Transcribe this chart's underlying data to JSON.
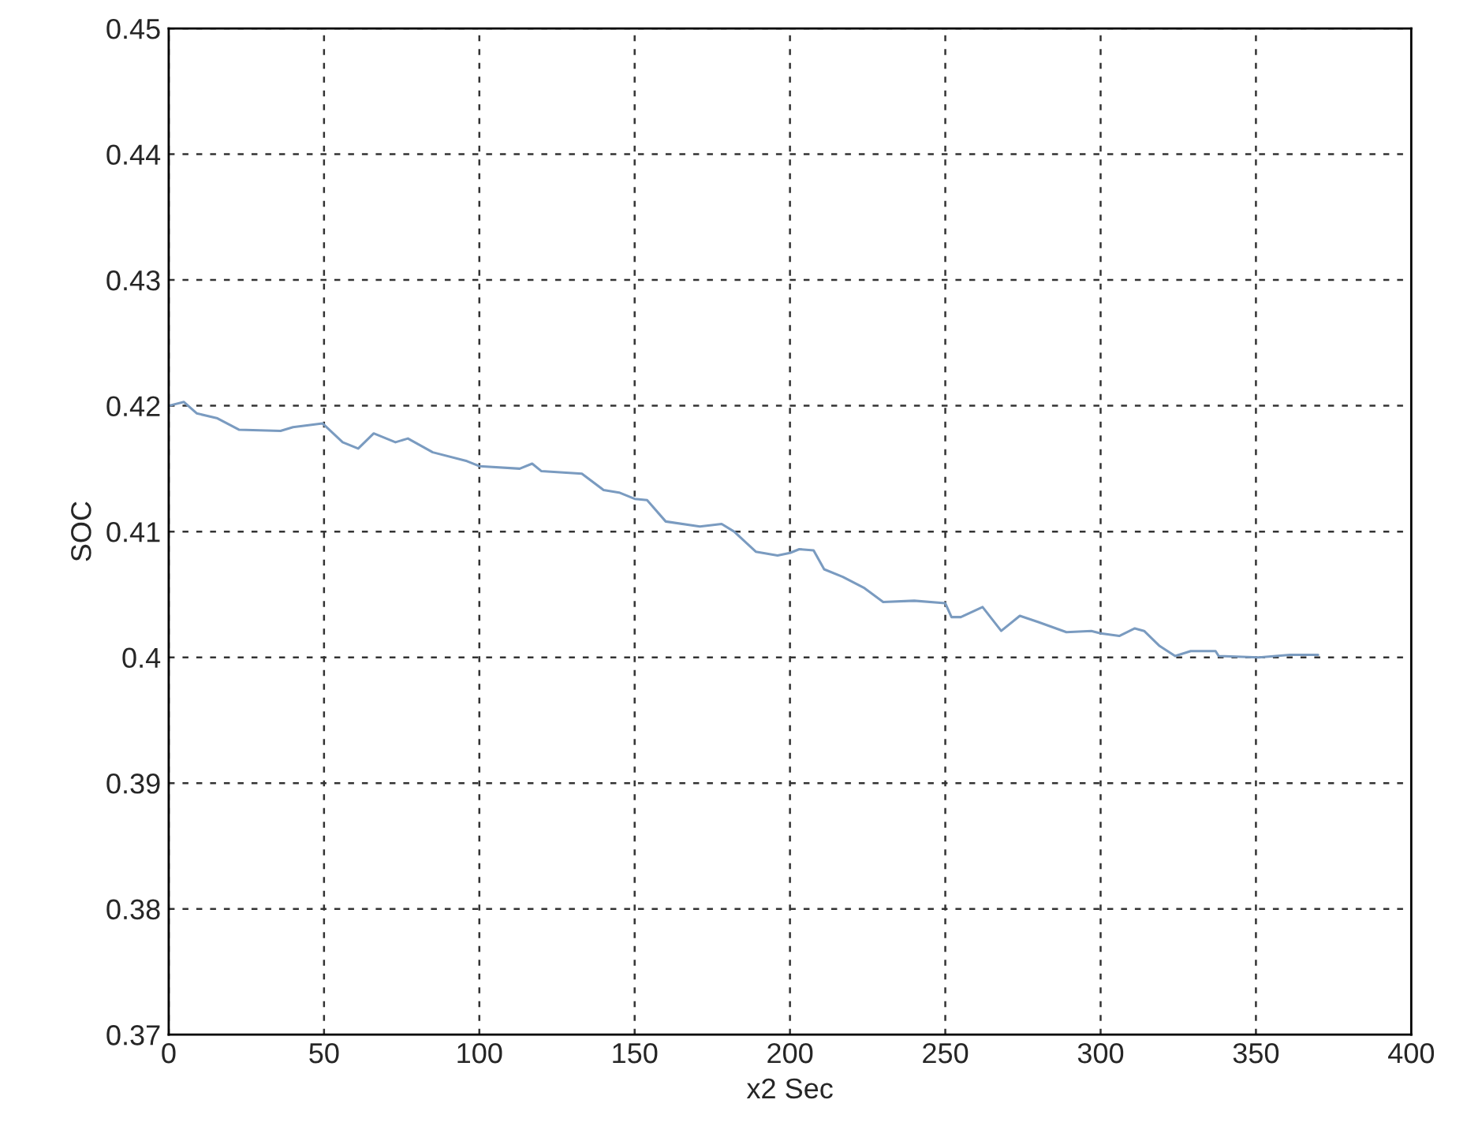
{
  "chart_data": {
    "type": "line",
    "xlabel": "x2 Sec",
    "ylabel": "SOC",
    "xlim": [
      0,
      400
    ],
    "xticks": [
      0,
      50,
      100,
      150,
      200,
      250,
      300,
      350,
      400
    ],
    "ylim": [
      0.37,
      0.45
    ],
    "yticks": [
      0.37,
      0.38,
      0.39,
      0.4,
      0.41,
      0.42,
      0.43,
      0.44,
      0.45
    ],
    "grid": true,
    "line_style": "solid",
    "marker": "none",
    "series": [
      {
        "color": "#7a9bc0",
        "x": [
          0,
          4.9,
          9,
          15.7,
          22.6,
          36,
          40,
          49.5,
          56,
          61,
          66,
          73,
          77,
          85,
          96,
          100,
          113,
          117,
          120,
          133,
          140,
          145,
          150,
          154,
          160,
          171,
          178,
          182,
          189,
          196,
          200,
          203,
          207.6,
          211,
          217,
          224,
          230,
          240,
          250,
          252,
          255,
          262,
          268,
          274,
          280,
          289,
          297,
          300,
          306,
          311,
          314,
          319,
          324,
          329,
          337,
          338,
          351,
          361,
          370
        ],
        "values": [
          0.42,
          0.4203,
          0.4194,
          0.419,
          0.4181,
          0.418,
          0.4183,
          0.4186,
          0.4171,
          0.4166,
          0.4178,
          0.4171,
          0.4174,
          0.4163,
          0.4156,
          0.4152,
          0.415,
          0.4154,
          0.4148,
          0.4146,
          0.4133,
          0.4131,
          0.4126,
          0.4125,
          0.4108,
          0.4104,
          0.4106,
          0.41,
          0.4084,
          0.4081,
          0.4083,
          0.4086,
          0.4085,
          0.407,
          0.4064,
          0.4055,
          0.4044,
          0.4045,
          0.4043,
          0.4032,
          0.4032,
          0.404,
          0.4021,
          0.4033,
          0.4028,
          0.402,
          0.4021,
          0.4019,
          0.4017,
          0.4023,
          0.4021,
          0.4009,
          0.4001,
          0.4005,
          0.4005,
          0.4001,
          0.4,
          0.4002,
          0.4002
        ]
      }
    ]
  }
}
